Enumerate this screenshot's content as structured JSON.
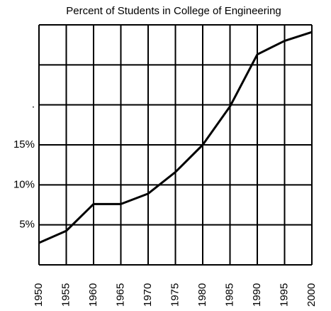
{
  "chart_data": {
    "type": "line",
    "title": "Percent of Students in College of Engineering",
    "x": [
      1950,
      1955,
      1960,
      1965,
      1970,
      1975,
      1980,
      1985,
      1990,
      1995,
      2000
    ],
    "series": [
      {
        "color": "#000000",
        "values": [
          2.75,
          4.25,
          7.6,
          7.6,
          8.9,
          11.6,
          15,
          19.8,
          26.3,
          28,
          29.1
        ]
      }
    ],
    "xlim": [
      1950,
      2000
    ],
    "xticks": [
      1950,
      1955,
      1960,
      1965,
      1970,
      1975,
      1980,
      1985,
      1990,
      1995,
      2000
    ],
    "ylim": [
      0,
      30
    ],
    "yticks": [
      {
        "value": 5,
        "label": "5%"
      },
      {
        "value": 10,
        "label": "10%"
      },
      {
        "value": 15,
        "label": "15%"
      },
      {
        "value": 20,
        "label": "."
      },
      {
        "value": 25,
        "label": null
      },
      {
        "value": 30,
        "label": null
      }
    ],
    "grid": true
  }
}
